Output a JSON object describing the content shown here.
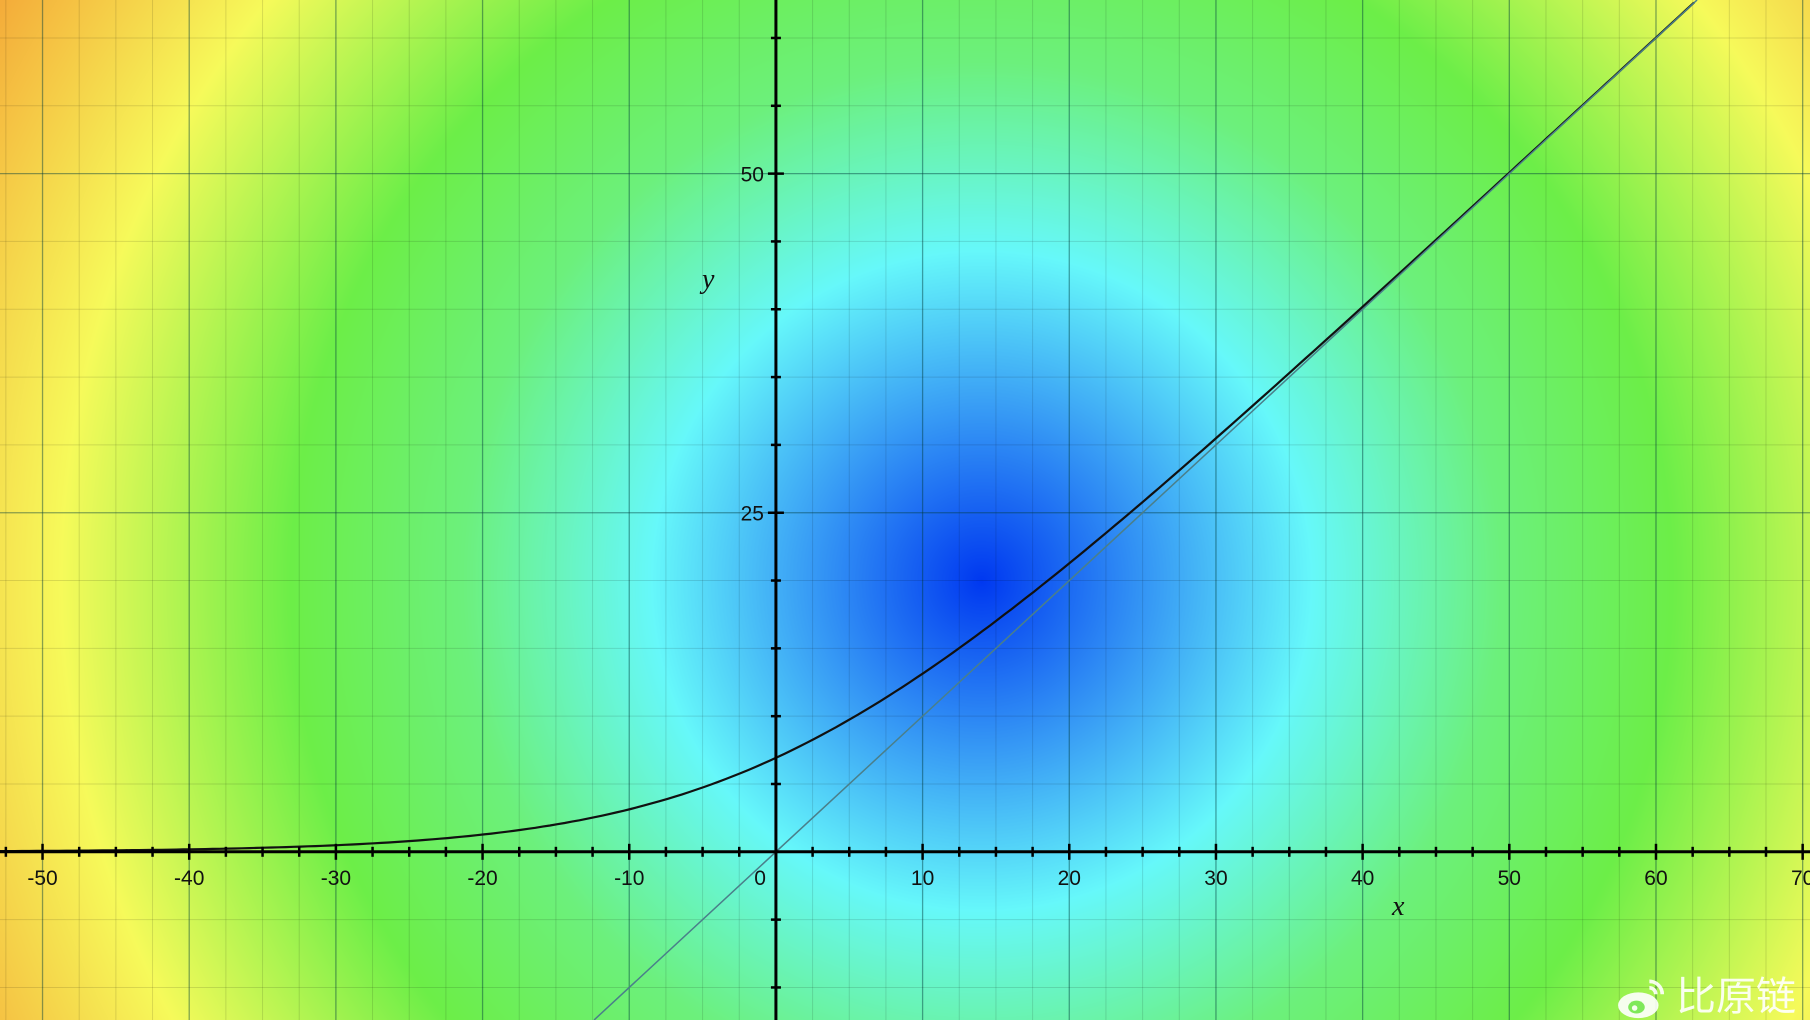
{
  "chart_data": {
    "type": "line",
    "title": "",
    "xlabel": "x",
    "ylabel": "y",
    "xlim": [
      -52.9,
      70.5
    ],
    "ylim": [
      -12.4,
      62.8
    ],
    "x_ticks": [
      -50,
      -40,
      -30,
      -20,
      -10,
      0,
      10,
      20,
      30,
      40,
      50,
      60,
      70
    ],
    "x_tick_labels": [
      "-50",
      "-40",
      "-30",
      "-20",
      "-10",
      "0",
      "10",
      "20",
      "30",
      "40",
      "50",
      "60",
      "70"
    ],
    "y_ticks": [
      25,
      50
    ],
    "y_tick_labels": [
      "25",
      "50"
    ],
    "x_minor_step": 2.5,
    "y_minor_step": 5,
    "grid": true,
    "series": [
      {
        "function": "y = 10*ln(1+exp(x/10))",
        "color": "#111111",
        "points": [
          [
            -50,
            0.07
          ],
          [
            -40,
            0.18
          ],
          [
            -30,
            0.49
          ],
          [
            -20,
            1.27
          ],
          [
            -10,
            3.13
          ],
          [
            0,
            6.93
          ],
          [
            10,
            13.13
          ],
          [
            20,
            21.27
          ],
          [
            30,
            30.49
          ],
          [
            40,
            40.18
          ],
          [
            50,
            50.07
          ],
          [
            60,
            60.02
          ]
        ]
      },
      {
        "function": "y = x",
        "color": "#4a7f8a",
        "points": [
          [
            -15,
            -15
          ],
          [
            0,
            0
          ],
          [
            70,
            70
          ]
        ]
      }
    ],
    "background": {
      "type": "heatmap",
      "description_colormap": [
        "#0038f0",
        "#3aa0f5",
        "#66f8fa",
        "#6cf07c",
        "#6cf048",
        "#f6fa5a",
        "#f4a838"
      ],
      "center": [
        14,
        20
      ]
    }
  },
  "watermark": {
    "text": "比原链"
  }
}
